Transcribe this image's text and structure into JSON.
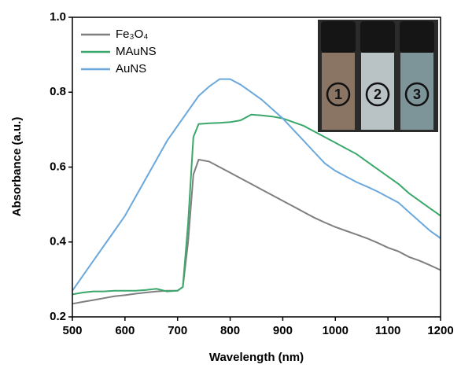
{
  "chart_data": {
    "type": "line",
    "x_label": "Wavelength (nm)",
    "y_label": "Absorbance (a.u.)",
    "x": [
      500,
      520,
      540,
      560,
      580,
      600,
      620,
      640,
      660,
      680,
      700,
      710,
      720,
      730,
      740,
      760,
      780,
      800,
      820,
      840,
      860,
      880,
      900,
      920,
      940,
      960,
      980,
      1000,
      1020,
      1040,
      1060,
      1080,
      1100,
      1120,
      1140,
      1160,
      1180,
      1200
    ],
    "series": [
      {
        "name": "Fe₃O₄",
        "color": "#7f7f7f",
        "values": [
          0.235,
          0.24,
          0.245,
          0.25,
          0.255,
          0.258,
          0.262,
          0.265,
          0.268,
          0.27,
          0.27,
          0.28,
          0.4,
          0.58,
          0.62,
          0.615,
          0.6,
          0.585,
          0.57,
          0.555,
          0.54,
          0.525,
          0.51,
          0.495,
          0.48,
          0.465,
          0.452,
          0.44,
          0.43,
          0.42,
          0.41,
          0.398,
          0.385,
          0.375,
          0.36,
          0.35,
          0.338,
          0.325
        ]
      },
      {
        "name": "MAuNS",
        "color": "#3aa86b",
        "values": [
          0.26,
          0.265,
          0.268,
          0.268,
          0.27,
          0.27,
          0.27,
          0.272,
          0.275,
          0.268,
          0.27,
          0.28,
          0.45,
          0.68,
          0.715,
          0.717,
          0.718,
          0.72,
          0.725,
          0.74,
          0.738,
          0.735,
          0.73,
          0.72,
          0.71,
          0.695,
          0.68,
          0.665,
          0.65,
          0.635,
          0.615,
          0.595,
          0.575,
          0.555,
          0.53,
          0.51,
          0.49,
          0.47
        ]
      },
      {
        "name": "AuNS",
        "color": "#6aa8dc",
        "values": [
          0.27,
          0.31,
          0.35,
          0.39,
          0.43,
          0.47,
          0.52,
          0.57,
          0.62,
          0.67,
          0.71,
          0.73,
          0.75,
          0.77,
          0.79,
          0.815,
          0.835,
          0.835,
          0.82,
          0.8,
          0.78,
          0.755,
          0.73,
          0.7,
          0.67,
          0.64,
          0.61,
          0.59,
          0.575,
          0.56,
          0.548,
          0.535,
          0.52,
          0.505,
          0.48,
          0.455,
          0.43,
          0.41
        ]
      }
    ],
    "xlim": [
      500,
      1200
    ],
    "xticks": [
      500,
      600,
      700,
      800,
      900,
      1000,
      1100,
      1200
    ],
    "ylim": [
      0.2,
      1.0
    ],
    "yticks": [
      0.2,
      0.4,
      0.6,
      0.8,
      {
        "value": 1.0,
        "label": "1.0"
      }
    ],
    "annotations": [
      "1",
      "2",
      "3"
    ]
  }
}
